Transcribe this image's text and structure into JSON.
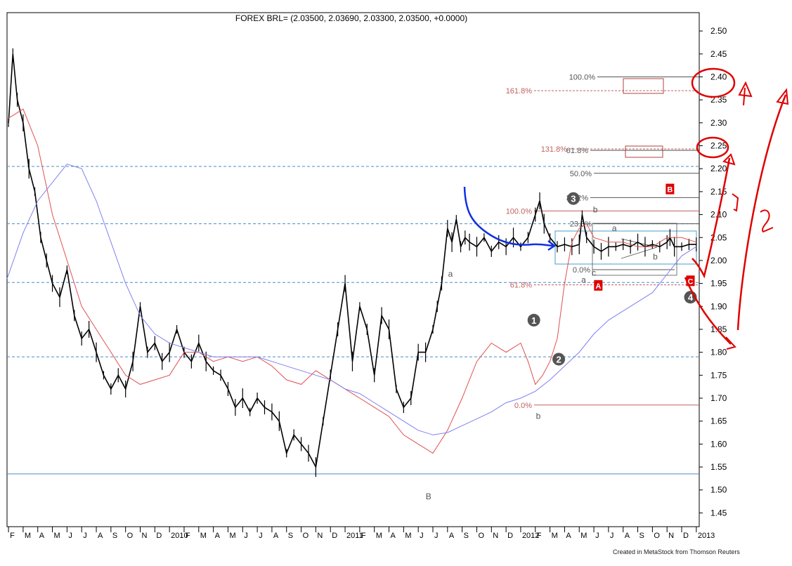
{
  "chart_data": {
    "type": "line",
    "title": "FOREX BRL= (2.03500, 2.03690, 2.03300, 2.03500, +0.0000)",
    "ylim": [
      1.42,
      2.54
    ],
    "y_ticks": [
      "1.45",
      "1.50",
      "1.55",
      "1.60",
      "1.65",
      "1.70",
      "1.75",
      "1.80",
      "1.85",
      "1.90",
      "1.95",
      "2.00",
      "2.05",
      "2.10",
      "2.15",
      "2.20",
      "2.25",
      "2.30",
      "2.35",
      "2.40",
      "2.45",
      "2.50"
    ],
    "y_tick_values": [
      1.45,
      1.5,
      1.55,
      1.6,
      1.65,
      1.7,
      1.75,
      1.8,
      1.85,
      1.9,
      1.95,
      2.0,
      2.05,
      2.1,
      2.15,
      2.2,
      2.25,
      2.3,
      2.35,
      2.4,
      2.45,
      2.5
    ],
    "x_ticks": [
      "F",
      "M",
      "A",
      "M",
      "J",
      "J",
      "A",
      "S",
      "O",
      "N",
      "D",
      "2010",
      "F",
      "M",
      "A",
      "M",
      "J",
      "J",
      "A",
      "S",
      "O",
      "N",
      "D",
      "2011",
      "F",
      "M",
      "A",
      "M",
      "J",
      "J",
      "A",
      "S",
      "O",
      "N",
      "D",
      "2012",
      "F",
      "M",
      "A",
      "M",
      "J",
      "J",
      "A",
      "S",
      "O",
      "N",
      "D",
      "2013"
    ],
    "x_tick_values": [
      1,
      2,
      3,
      4,
      5,
      6,
      7,
      8,
      9,
      10,
      11,
      12,
      13,
      14,
      15,
      16,
      17,
      18,
      19,
      20,
      21,
      22,
      23,
      24,
      25,
      26,
      27,
      28,
      29,
      30,
      31,
      32,
      33,
      34,
      35,
      36,
      37,
      38,
      39,
      40,
      41,
      42,
      43,
      44,
      45,
      46,
      47,
      48
    ],
    "xlim": [
      0.9,
      48.2
    ],
    "grid": false,
    "series": [
      {
        "x": [
          1.0,
          1.3,
          1.6,
          2.0,
          2.4,
          2.8,
          3.2,
          3.6,
          4.0,
          4.5,
          5.0,
          5.5,
          6.0,
          6.5,
          7.0,
          7.5,
          8.0,
          8.5,
          9.0,
          9.5,
          10.0,
          10.5,
          11.0,
          11.5,
          12.0,
          12.5,
          13.0,
          13.5,
          14.0,
          14.5,
          15.0,
          15.5,
          16.0,
          16.5,
          17.0,
          17.5,
          18.0,
          18.5,
          19.0,
          19.5,
          20.0,
          20.5,
          21.0,
          21.5,
          22.0,
          22.5,
          23.0,
          23.5,
          24.0,
          24.5,
          25.0,
          25.5,
          26.0,
          26.5,
          27.0,
          27.5,
          28.0,
          28.5,
          29.0,
          29.5,
          30.0,
          30.3,
          30.6,
          31.0,
          31.3,
          31.6,
          31.9,
          32.2,
          32.5,
          33.0,
          33.5,
          34.0,
          34.5,
          35.0,
          35.5,
          36.0,
          36.5,
          37.0,
          37.3,
          37.6,
          38.0,
          38.5,
          39.0,
          39.5,
          40.0,
          40.2,
          40.5,
          41.0,
          41.5,
          42.0,
          42.5,
          43.0,
          43.5,
          44.0,
          44.5,
          45.0,
          45.5,
          46.0,
          46.2,
          46.5,
          47.0,
          47.5,
          48.0
        ],
        "values": [
          2.3,
          2.45,
          2.35,
          2.3,
          2.2,
          2.15,
          2.05,
          2.0,
          1.95,
          1.92,
          1.98,
          1.88,
          1.83,
          1.85,
          1.8,
          1.75,
          1.72,
          1.75,
          1.72,
          1.78,
          1.9,
          1.8,
          1.82,
          1.78,
          1.8,
          1.85,
          1.8,
          1.78,
          1.82,
          1.78,
          1.76,
          1.75,
          1.72,
          1.68,
          1.7,
          1.67,
          1.7,
          1.68,
          1.67,
          1.65,
          1.58,
          1.62,
          1.6,
          1.58,
          1.55,
          1.65,
          1.75,
          1.85,
          1.95,
          1.78,
          1.9,
          1.85,
          1.75,
          1.88,
          1.85,
          1.72,
          1.68,
          1.7,
          1.8,
          1.8,
          1.85,
          1.9,
          1.95,
          2.07,
          2.04,
          2.09,
          2.03,
          2.05,
          2.04,
          2.03,
          2.05,
          2.02,
          2.04,
          2.03,
          2.05,
          2.03,
          2.05,
          2.1,
          2.13,
          2.08,
          2.05,
          2.03,
          2.035,
          2.03,
          2.035,
          2.1,
          2.05,
          2.03,
          2.02,
          2.03,
          2.03,
          2.035,
          2.03,
          2.04,
          2.03,
          2.035,
          2.03,
          2.04,
          2.05,
          2.03,
          2.03,
          2.035,
          2.035
        ],
        "color": "#000000"
      },
      {
        "name": "",
        "x": [
          1.0,
          2.0,
          3.0,
          4.0,
          5.0,
          6.0,
          7.0,
          8.0,
          9.0,
          10.0,
          11.0,
          12.0,
          13.0,
          14.0,
          15.0,
          16.0,
          17.0,
          18.0,
          19.0,
          20.0,
          21.0,
          22.0,
          23.0,
          24.0,
          25.0,
          26.0,
          27.0,
          28.0,
          29.0,
          30.0,
          31.0,
          32.0,
          33.0,
          34.0,
          35.0,
          36.0,
          36.5,
          37.0,
          37.5,
          38.0,
          38.5,
          39.0,
          39.5,
          40.0,
          40.5,
          41.0,
          42.0,
          43.0,
          44.0,
          45.0,
          46.0,
          47.0,
          48.0
        ],
        "values": [
          2.31,
          2.33,
          2.25,
          2.1,
          2.0,
          1.9,
          1.85,
          1.8,
          1.75,
          1.73,
          1.74,
          1.75,
          1.8,
          1.8,
          1.78,
          1.79,
          1.78,
          1.79,
          1.77,
          1.74,
          1.73,
          1.76,
          1.74,
          1.72,
          1.7,
          1.68,
          1.66,
          1.62,
          1.6,
          1.58,
          1.63,
          1.7,
          1.78,
          1.82,
          1.8,
          1.82,
          1.78,
          1.73,
          1.75,
          1.78,
          1.83,
          1.95,
          2.04,
          2.07,
          2.08,
          2.05,
          2.04,
          2.04,
          2.03,
          2.03,
          2.05,
          2.05,
          2.04
        ],
        "color": "#e05050"
      },
      {
        "name": "",
        "x": [
          0.9,
          2.0,
          3.0,
          4.0,
          5.0,
          6.0,
          7.0,
          8.0,
          9.0,
          10.0,
          11.0,
          12.0,
          13.0,
          14.0,
          15.0,
          16.0,
          17.0,
          18.0,
          19.0,
          20.0,
          21.0,
          22.0,
          23.0,
          24.0,
          25.0,
          26.0,
          27.0,
          28.0,
          29.0,
          30.0,
          31.0,
          32.0,
          33.0,
          34.0,
          35.0,
          36.0,
          37.0,
          38.0,
          39.0,
          40.0,
          41.0,
          42.0,
          43.0,
          44.0,
          45.0,
          46.0,
          47.0,
          48.0
        ],
        "values": [
          1.96,
          2.06,
          2.13,
          2.17,
          2.21,
          2.2,
          2.13,
          2.04,
          1.95,
          1.88,
          1.84,
          1.82,
          1.81,
          1.8,
          1.79,
          1.79,
          1.79,
          1.79,
          1.78,
          1.77,
          1.76,
          1.75,
          1.74,
          1.72,
          1.71,
          1.69,
          1.67,
          1.65,
          1.63,
          1.62,
          1.625,
          1.64,
          1.655,
          1.67,
          1.69,
          1.7,
          1.715,
          1.74,
          1.77,
          1.8,
          1.84,
          1.87,
          1.89,
          1.91,
          1.93,
          1.97,
          2.01,
          2.03
        ],
        "color": "#8080f0"
      }
    ],
    "hlines": [
      {
        "y": 2.205,
        "color": "#4a8cc8",
        "style": "dashed"
      },
      {
        "y": 2.08,
        "color": "#4a8cc8",
        "style": "dashed"
      },
      {
        "y": 1.952,
        "color": "#4a8cc8",
        "style": "dashed"
      },
      {
        "y": 1.79,
        "color": "#4a8cc8",
        "style": "dashed"
      },
      {
        "y": 1.535,
        "color": "#4a8cc8",
        "style": "solid"
      }
    ],
    "fib_lines": [
      {
        "label": "100.0%",
        "y": 2.4,
        "color": "#555555"
      },
      {
        "label": "161.8%",
        "y": 2.37,
        "color": "#c06060"
      },
      {
        "label": "131.8%",
        "y": 2.243,
        "color": "#c06060"
      },
      {
        "label": "61.8%",
        "y": 2.24,
        "color": "#555555"
      },
      {
        "label": "50.0%",
        "y": 2.19,
        "color": "#555555"
      },
      {
        "label": "38.2%",
        "y": 2.137,
        "color": "#555555"
      },
      {
        "label": "100.0%",
        "y": 2.108,
        "color": "#c06060"
      },
      {
        "label": "23.6%",
        "y": 2.08,
        "color": "#555555"
      },
      {
        "label": "0.0%",
        "y": 1.98,
        "color": "#555555"
      },
      {
        "label": "61.8%",
        "y": 1.947,
        "color": "#c06060"
      },
      {
        "label": "0.0%",
        "y": 1.685,
        "color": "#c06060"
      }
    ],
    "annotations": [
      {
        "text": "a",
        "x": 31.2,
        "y": 1.965
      },
      {
        "text": "B",
        "x": 29.7,
        "y": 1.48
      },
      {
        "text": "b",
        "x": 37.2,
        "y": 1.655
      },
      {
        "text": "b",
        "x": 41.1,
        "y": 2.105
      },
      {
        "text": "a",
        "x": 42.4,
        "y": 2.064
      },
      {
        "text": "b",
        "x": 45.2,
        "y": 2.002
      },
      {
        "text": "c",
        "x": 41.0,
        "y": 1.967
      },
      {
        "text": "a",
        "x": 40.3,
        "y": 1.952
      }
    ],
    "wave_labels": [
      {
        "text": "1",
        "x": 36.9,
        "y": 1.87
      },
      {
        "text": "2",
        "x": 38.6,
        "y": 1.785
      },
      {
        "text": "3",
        "x": 39.6,
        "y": 2.135
      },
      {
        "text": "4",
        "x": 47.6,
        "y": 1.92
      }
    ],
    "abc_labels": [
      {
        "text": "A",
        "x": 41.3,
        "y": 1.945
      },
      {
        "text": "B",
        "x": 46.2,
        "y": 2.155
      },
      {
        "text": "C",
        "x": 47.6,
        "y": 1.955
      }
    ],
    "handwritten_labels": [
      "1",
      "2"
    ],
    "credit": "Created in MetaStock from Thomson Reuters"
  }
}
